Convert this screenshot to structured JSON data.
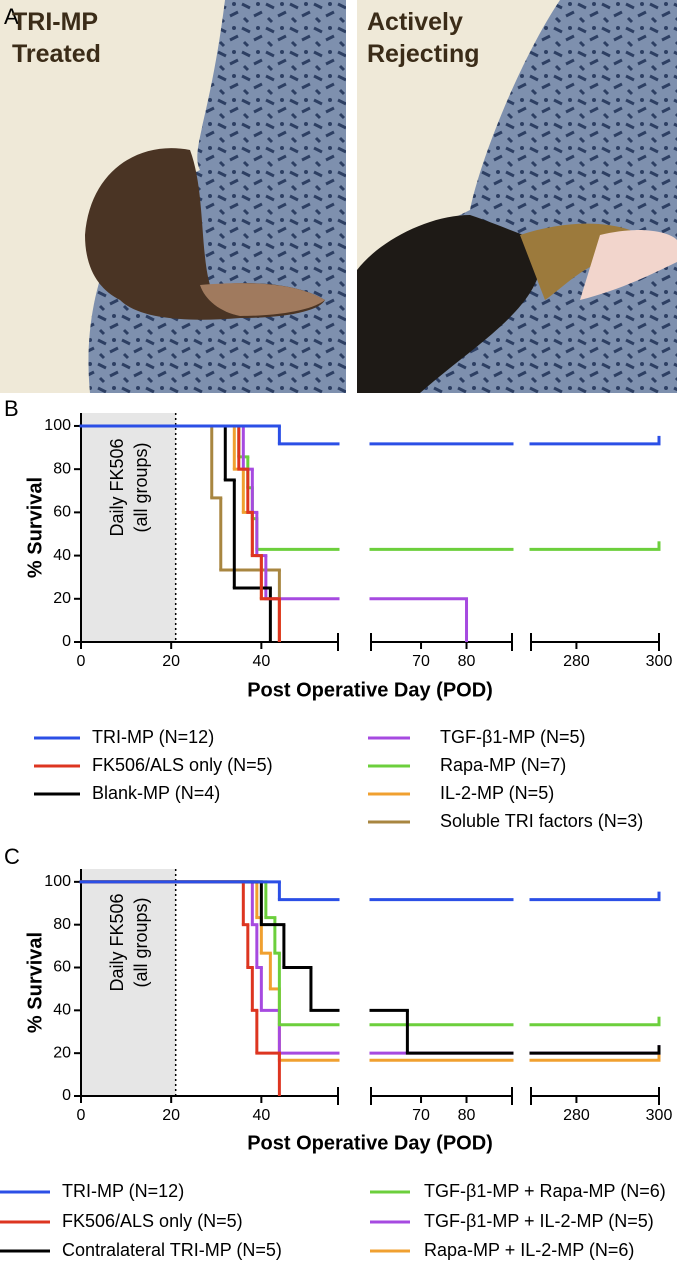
{
  "panel_a": {
    "label": "A",
    "images": [
      {
        "caption": [
          "TRI-MP",
          "Treated"
        ]
      },
      {
        "caption": [
          "Actively",
          "Rejecting"
        ]
      }
    ]
  },
  "chart_data": [
    {
      "type": "kaplan-meier",
      "panel": "B",
      "ylabel": "% Survival",
      "xlabel": "Post Operative Day (POD)",
      "annotation": [
        "Daily FK506",
        "(all groups)"
      ],
      "shade_until": 21,
      "ylim": [
        0,
        106
      ],
      "yticks": [
        0,
        20,
        40,
        60,
        80,
        100
      ],
      "x_segments": [
        {
          "xlim": [
            0,
            57
          ],
          "xticks": [
            0,
            20,
            40
          ]
        },
        {
          "xlim": [
            59,
            90
          ],
          "xticks": [
            70,
            80
          ]
        },
        {
          "xlim": [
            269,
            300
          ],
          "xticks": [
            280,
            300
          ]
        }
      ],
      "series": [
        {
          "name": "TRI-MP (N=12)",
          "color": "#2b4fe6",
          "x": [
            0,
            44
          ],
          "values": [
            100,
            91.7
          ]
        },
        {
          "name": "FK506/ALS only (N=5)",
          "color": "#dd3520",
          "x": [
            0,
            35,
            37,
            38,
            40,
            44
          ],
          "values": [
            100,
            80,
            60,
            40,
            20,
            0
          ]
        },
        {
          "name": "Blank-MP (N=4)",
          "color": "#000000",
          "x": [
            0,
            32,
            34,
            42
          ],
          "values": [
            100,
            75,
            25,
            0
          ]
        },
        {
          "name": "TGF-β1-MP (N=5)",
          "color": "#a64ae0",
          "x": [
            0,
            36,
            38,
            39,
            41,
            80
          ],
          "values": [
            100,
            80,
            60,
            40,
            20,
            0
          ]
        },
        {
          "name": "Rapa-MP (N=7)",
          "color": "#6ccf3c",
          "x": [
            0,
            35,
            37,
            38,
            39
          ],
          "values": [
            100,
            85.7,
            71.4,
            57.1,
            42.9
          ]
        },
        {
          "name": "IL-2-MP (N=5)",
          "color": "#f0a030",
          "x": [
            0,
            34,
            36,
            38,
            40,
            44
          ],
          "values": [
            100,
            80,
            60,
            40,
            20,
            0
          ]
        },
        {
          "name": "Soluble TRI factors (N=3)",
          "color": "#a88640",
          "x": [
            0,
            29,
            31,
            44
          ],
          "values": [
            100,
            66.7,
            33.3,
            0
          ]
        }
      ]
    },
    {
      "type": "kaplan-meier",
      "panel": "C",
      "ylabel": "% Survival",
      "xlabel": "Post Operative Day (POD)",
      "annotation": [
        "Daily FK506",
        "(all groups)"
      ],
      "shade_until": 21,
      "ylim": [
        0,
        106
      ],
      "yticks": [
        0,
        20,
        40,
        60,
        80,
        100
      ],
      "x_segments": [
        {
          "xlim": [
            0,
            57
          ],
          "xticks": [
            0,
            20,
            40
          ]
        },
        {
          "xlim": [
            59,
            90
          ],
          "xticks": [
            70,
            80
          ]
        },
        {
          "xlim": [
            269,
            300
          ],
          "xticks": [
            280,
            300
          ]
        }
      ],
      "series": [
        {
          "name": "TRI-MP (N=12)",
          "color": "#2b4fe6",
          "x": [
            0,
            44
          ],
          "values": [
            100,
            91.7
          ]
        },
        {
          "name": "FK506/ALS only (N=5)",
          "color": "#dd3520",
          "x": [
            0,
            36,
            37,
            38,
            39,
            44
          ],
          "values": [
            100,
            80,
            60,
            40,
            20,
            0
          ]
        },
        {
          "name": "Contralateral TRI-MP (N=5)",
          "color": "#000000",
          "x": [
            0,
            40,
            45,
            51,
            67
          ],
          "values": [
            100,
            80,
            60,
            40,
            20
          ]
        },
        {
          "name": "TGF-β1-MP + Rapa-MP (N=6)",
          "color": "#6ccf3c",
          "x": [
            0,
            41,
            43,
            44
          ],
          "values": [
            100,
            83.3,
            66.7,
            33.3
          ]
        },
        {
          "name": "TGF-β1-MP + IL-2-MP (N=5)",
          "color": "#a64ae0",
          "x": [
            0,
            38,
            39,
            40,
            44
          ],
          "values": [
            100,
            80,
            60,
            40,
            20
          ]
        },
        {
          "name": "Rapa-MP + IL-2-MP (N=6)",
          "color": "#f0a030",
          "x": [
            0,
            39,
            40,
            42,
            44
          ],
          "values": [
            100,
            83.3,
            66.7,
            50,
            16.7
          ]
        }
      ]
    }
  ]
}
